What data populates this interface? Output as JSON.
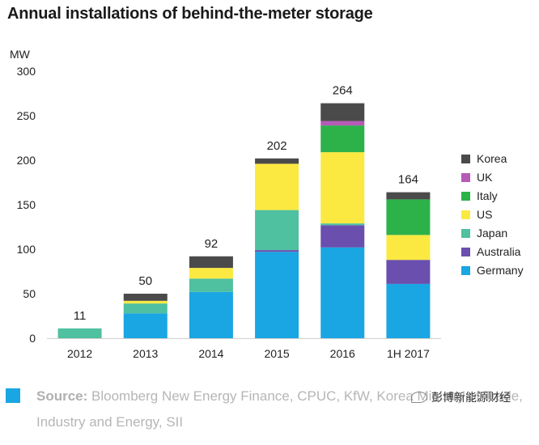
{
  "title": "Annual installations of behind-the-meter storage",
  "colors": {
    "Korea": "#4a4a4a",
    "UK": "#b65ab8",
    "Italy": "#2db24a",
    "US": "#fbe941",
    "Japan": "#4fc0a0",
    "Australia": "#6a4fae",
    "Germany": "#1aa6e2",
    "source_square": "#1aa6e2"
  },
  "chart_data": {
    "type": "bar",
    "stacked": true,
    "title": "Annual installations of behind-the-meter storage",
    "ylabel": "MW",
    "xlabel": "",
    "ylim": [
      0,
      300
    ],
    "yticks": [
      0,
      50,
      100,
      150,
      200,
      250,
      300
    ],
    "grid": false,
    "legend": "right",
    "categories": [
      "2012",
      "2013",
      "2014",
      "2015",
      "2016",
      "1H 2017"
    ],
    "totals": [
      11,
      50,
      92,
      202,
      264,
      164
    ],
    "series": [
      {
        "name": "Germany",
        "values": [
          0,
          28,
          52,
          97,
          102,
          61
        ]
      },
      {
        "name": "Australia",
        "values": [
          0,
          0,
          0,
          2,
          25,
          27
        ]
      },
      {
        "name": "Japan",
        "values": [
          11,
          11,
          15,
          45,
          2,
          0
        ]
      },
      {
        "name": "US",
        "values": [
          0,
          3,
          12,
          52,
          80,
          28
        ]
      },
      {
        "name": "Italy",
        "values": [
          0,
          0,
          0,
          0,
          30,
          40
        ]
      },
      {
        "name": "UK",
        "values": [
          0,
          0,
          0,
          0,
          5,
          0
        ]
      },
      {
        "name": "Korea",
        "values": [
          0,
          8,
          13,
          6,
          20,
          8
        ]
      }
    ],
    "legend_order": [
      "Korea",
      "UK",
      "Italy",
      "US",
      "Japan",
      "Australia",
      "Germany"
    ]
  },
  "source": {
    "label": "Source:",
    "text": " Bloomberg New Energy Finance, CPUC, KfW, Korea Ministry of Trade, Industry and Energy, SII"
  },
  "watermark": "彭博新能源财经"
}
